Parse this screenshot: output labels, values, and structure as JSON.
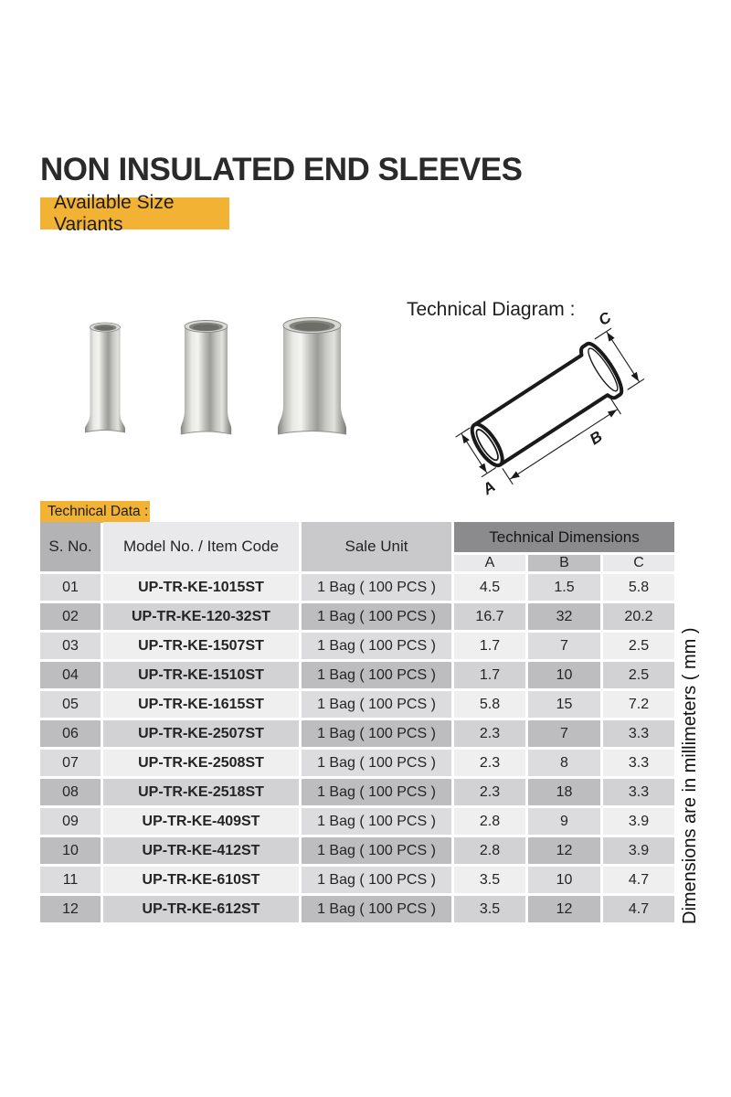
{
  "page": {
    "title": "NON INSULATED END SLEEVES",
    "size_variants_label": "Available Size Variants",
    "technical_diagram_label": "Technical Diagram :",
    "technical_data_label": "Technical Data :",
    "dimensions_note": "Dimensions are in millimeters ( mm )"
  },
  "colors": {
    "accent_yellow": "#f2b233"
  },
  "diagram": {
    "dim_a": "A",
    "dim_b": "B",
    "dim_c": "C"
  },
  "table": {
    "headers": {
      "s_no": "S. No.",
      "model": "Model No. / Item Code",
      "sale_unit": "Sale Unit",
      "tech_dims": "Technical Dimensions",
      "dim_a": "A",
      "dim_b": "B",
      "dim_c": "C"
    },
    "rows": [
      {
        "s_no": "01",
        "model": "UP-TR-KE-1015ST",
        "sale_unit": "1 Bag ( 100 PCS )",
        "a": "4.5",
        "b": "1.5",
        "c": "5.8"
      },
      {
        "s_no": "02",
        "model": "UP-TR-KE-120-32ST",
        "sale_unit": "1 Bag ( 100 PCS )",
        "a": "16.7",
        "b": "32",
        "c": "20.2"
      },
      {
        "s_no": "03",
        "model": "UP-TR-KE-1507ST",
        "sale_unit": "1 Bag ( 100 PCS )",
        "a": "1.7",
        "b": "7",
        "c": "2.5"
      },
      {
        "s_no": "04",
        "model": "UP-TR-KE-1510ST",
        "sale_unit": "1 Bag ( 100 PCS )",
        "a": "1.7",
        "b": "10",
        "c": "2.5"
      },
      {
        "s_no": "05",
        "model": "UP-TR-KE-1615ST",
        "sale_unit": "1 Bag ( 100 PCS )",
        "a": "5.8",
        "b": "15",
        "c": "7.2"
      },
      {
        "s_no": "06",
        "model": "UP-TR-KE-2507ST",
        "sale_unit": "1 Bag ( 100 PCS )",
        "a": "2.3",
        "b": "7",
        "c": "3.3"
      },
      {
        "s_no": "07",
        "model": "UP-TR-KE-2508ST",
        "sale_unit": "1 Bag ( 100 PCS )",
        "a": "2.3",
        "b": "8",
        "c": "3.3"
      },
      {
        "s_no": "08",
        "model": "UP-TR-KE-2518ST",
        "sale_unit": "1 Bag ( 100 PCS )",
        "a": "2.3",
        "b": "18",
        "c": "3.3"
      },
      {
        "s_no": "09",
        "model": "UP-TR-KE-409ST",
        "sale_unit": "1 Bag ( 100 PCS )",
        "a": "2.8",
        "b": "9",
        "c": "3.9"
      },
      {
        "s_no": "10",
        "model": "UP-TR-KE-412ST",
        "sale_unit": "1 Bag ( 100 PCS )",
        "a": "2.8",
        "b": "12",
        "c": "3.9"
      },
      {
        "s_no": "11",
        "model": "UP-TR-KE-610ST",
        "sale_unit": "1 Bag ( 100 PCS )",
        "a": "3.5",
        "b": "10",
        "c": "4.7"
      },
      {
        "s_no": "12",
        "model": "UP-TR-KE-612ST",
        "sale_unit": "1 Bag ( 100 PCS )",
        "a": "3.5",
        "b": "12",
        "c": "4.7"
      }
    ]
  }
}
